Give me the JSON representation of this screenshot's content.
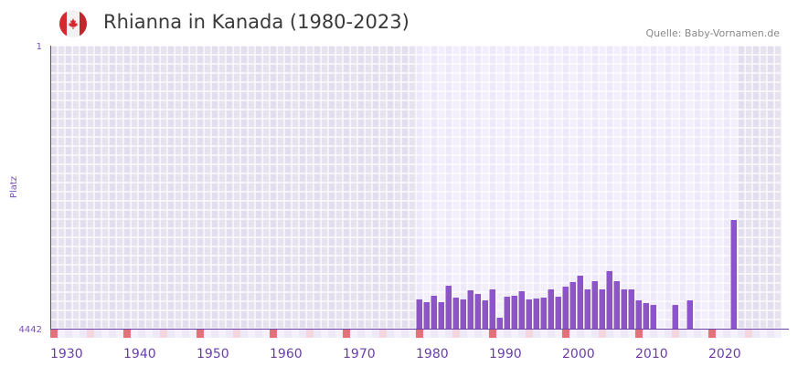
{
  "header": {
    "title": "Rhianna in Kanada (1980-2023)",
    "source": "Quelle: Baby-Vornamen.de",
    "flag_icon": "canada-flag-icon"
  },
  "chart_data": {
    "type": "bar",
    "title": "Rhianna in Kanada (1980-2023)",
    "xlabel": "",
    "ylabel": "Platz",
    "y_inverted": true,
    "ylim": [
      1,
      4442
    ],
    "y_ticks": [
      "1",
      "4442"
    ],
    "xlim": [
      1930,
      2030
    ],
    "x_ticks": [
      "1930",
      "1940",
      "1950",
      "1960",
      "1970",
      "1980",
      "1990",
      "2000",
      "2010",
      "2020"
    ],
    "highlight_range": [
      1980,
      2023
    ],
    "x": [
      1980,
      1981,
      1982,
      1983,
      1984,
      1985,
      1986,
      1987,
      1988,
      1989,
      1990,
      1991,
      1992,
      1993,
      1994,
      1995,
      1996,
      1997,
      1998,
      1999,
      2000,
      2001,
      2002,
      2003,
      2004,
      2005,
      2006,
      2007,
      2008,
      2009,
      2010,
      2011,
      2012,
      2015,
      2017,
      2023
    ],
    "values": [
      3983,
      4026,
      3926,
      4026,
      3769,
      3955,
      3983,
      3840,
      3898,
      3998,
      3826,
      4270,
      3941,
      3926,
      3855,
      3983,
      3969,
      3955,
      3826,
      3941,
      3783,
      3711,
      3611,
      3826,
      3697,
      3826,
      3539,
      3697,
      3826,
      3826,
      3998,
      4041,
      4070,
      4070,
      3998,
      2737
    ],
    "colors": {
      "bar": "#8b55c8",
      "axis": "#6a3fa8",
      "decade_marker": "#e57079",
      "half_marker": "#f4d6df",
      "bg_out": "#e3dfec",
      "bg_in": "#efebf8"
    }
  }
}
